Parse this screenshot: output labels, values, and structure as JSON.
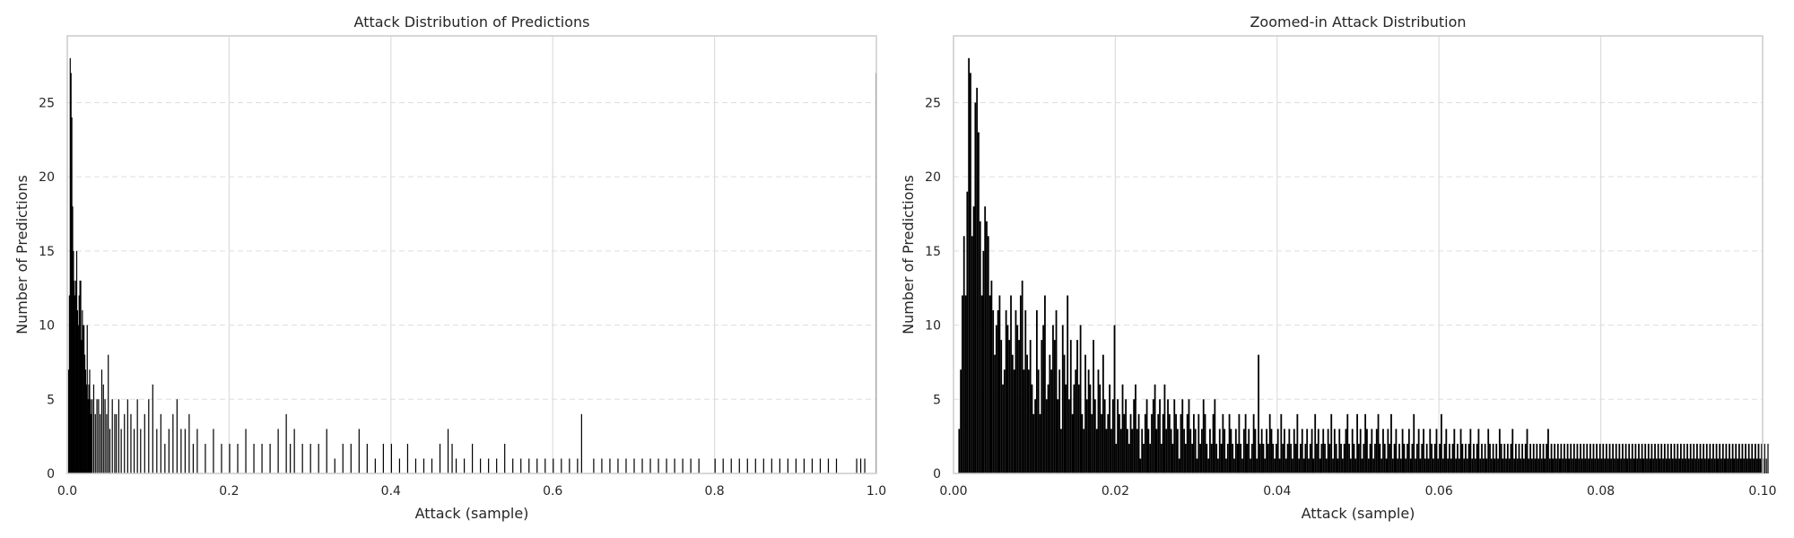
{
  "chart_data": [
    {
      "type": "bar",
      "title": "Attack Distribution of Predictions",
      "xlabel": "Attack (sample)",
      "ylabel": "Number of Predictions",
      "xlim": [
        0.0,
        1.0
      ],
      "ylim": [
        0,
        29.5
      ],
      "xticks": [
        "0.0",
        "0.2",
        "0.4",
        "0.6",
        "0.8",
        "1.0"
      ],
      "yticks": [
        "0",
        "5",
        "10",
        "15",
        "20",
        "25"
      ],
      "grid": {
        "x": "solid",
        "y": "dashed"
      },
      "bin_width": 0.001,
      "x": [
        0.001,
        0.002,
        0.003,
        0.004,
        0.005,
        0.006,
        0.007,
        0.008,
        0.009,
        0.01,
        0.011,
        0.012,
        0.013,
        0.014,
        0.015,
        0.016,
        0.017,
        0.018,
        0.019,
        0.02,
        0.021,
        0.022,
        0.023,
        0.024,
        0.025,
        0.026,
        0.027,
        0.028,
        0.029,
        0.03,
        0.032,
        0.034,
        0.036,
        0.038,
        0.04,
        0.042,
        0.044,
        0.046,
        0.048,
        0.05,
        0.052,
        0.055,
        0.058,
        0.06,
        0.063,
        0.066,
        0.07,
        0.074,
        0.078,
        0.082,
        0.086,
        0.09,
        0.095,
        0.1,
        0.105,
        0.11,
        0.115,
        0.12,
        0.125,
        0.13,
        0.135,
        0.14,
        0.145,
        0.15,
        0.155,
        0.16,
        0.17,
        0.18,
        0.19,
        0.2,
        0.21,
        0.22,
        0.23,
        0.24,
        0.25,
        0.26,
        0.27,
        0.275,
        0.28,
        0.29,
        0.3,
        0.31,
        0.32,
        0.33,
        0.34,
        0.35,
        0.36,
        0.37,
        0.38,
        0.39,
        0.4,
        0.41,
        0.42,
        0.43,
        0.44,
        0.45,
        0.46,
        0.47,
        0.475,
        0.48,
        0.49,
        0.5,
        0.51,
        0.52,
        0.53,
        0.54,
        0.55,
        0.56,
        0.57,
        0.58,
        0.59,
        0.6,
        0.61,
        0.62,
        0.63,
        0.635,
        0.65,
        0.66,
        0.67,
        0.68,
        0.69,
        0.7,
        0.71,
        0.72,
        0.73,
        0.74,
        0.75,
        0.76,
        0.77,
        0.78,
        0.8,
        0.81,
        0.82,
        0.83,
        0.84,
        0.85,
        0.86,
        0.87,
        0.88,
        0.89,
        0.9,
        0.91,
        0.92,
        0.93,
        0.94,
        0.95,
        0.975,
        0.98,
        0.985,
        0.999
      ],
      "values": [
        7,
        12,
        28,
        27,
        24,
        18,
        15,
        13,
        12,
        13,
        15,
        11,
        10,
        12,
        13,
        13,
        9,
        11,
        10,
        10,
        8,
        7,
        6,
        10,
        5,
        6,
        7,
        5,
        4,
        5,
        6,
        4,
        5,
        5,
        4,
        7,
        6,
        5,
        4,
        8,
        3,
        5,
        4,
        4,
        5,
        3,
        4,
        5,
        4,
        3,
        5,
        3,
        4,
        5,
        6,
        3,
        4,
        2,
        3,
        4,
        5,
        3,
        3,
        4,
        2,
        3,
        2,
        3,
        2,
        2,
        2,
        3,
        2,
        2,
        2,
        3,
        4,
        2,
        3,
        2,
        2,
        2,
        3,
        1,
        2,
        2,
        3,
        2,
        1,
        2,
        2,
        1,
        2,
        1,
        1,
        1,
        2,
        3,
        2,
        1,
        1,
        2,
        1,
        1,
        1,
        2,
        1,
        1,
        1,
        1,
        1,
        1,
        1,
        1,
        1,
        4,
        1,
        1,
        1,
        1,
        1,
        1,
        1,
        1,
        1,
        1,
        1,
        1,
        1,
        1,
        1,
        1,
        1,
        1,
        1,
        1,
        1,
        1,
        1,
        1,
        1,
        1,
        1,
        1,
        1,
        1,
        1,
        1,
        1,
        27
      ]
    },
    {
      "type": "bar",
      "title": "Zoomed-in Attack Distribution",
      "xlabel": "Attack (sample)",
      "ylabel": "Number of Predictions",
      "xlim": [
        0.0,
        0.1
      ],
      "ylim": [
        0,
        29.5
      ],
      "xticks": [
        "0.00",
        "0.02",
        "0.04",
        "0.06",
        "0.08",
        "0.10"
      ],
      "yticks": [
        "0",
        "5",
        "10",
        "15",
        "20",
        "25"
      ],
      "grid": {
        "x": "solid",
        "y": "dashed"
      },
      "bin_width": 0.0002,
      "values": [
        0,
        0,
        0,
        3,
        7,
        12,
        16,
        12,
        19,
        28,
        27,
        16,
        18,
        25,
        26,
        23,
        17,
        12,
        15,
        18,
        17,
        16,
        12,
        13,
        11,
        8,
        10,
        11,
        12,
        9,
        6,
        7,
        11,
        10,
        9,
        12,
        8,
        7,
        11,
        10,
        9,
        12,
        13,
        7,
        11,
        8,
        7,
        9,
        6,
        4,
        5,
        11,
        7,
        4,
        9,
        10,
        12,
        5,
        6,
        8,
        7,
        10,
        9,
        11,
        5,
        7,
        3,
        10,
        8,
        6,
        12,
        5,
        9,
        4,
        6,
        7,
        9,
        6,
        10,
        4,
        3,
        8,
        5,
        7,
        6,
        4,
        9,
        5,
        3,
        7,
        6,
        4,
        8,
        5,
        3,
        4,
        6,
        3,
        5,
        10,
        2,
        5,
        4,
        3,
        6,
        4,
        5,
        3,
        2,
        4,
        3,
        5,
        6,
        3,
        4,
        1,
        3,
        2,
        4,
        5,
        3,
        2,
        4,
        5,
        6,
        3,
        4,
        5,
        2,
        4,
        6,
        3,
        5,
        4,
        3,
        2,
        5,
        4,
        3,
        1,
        4,
        5,
        3,
        2,
        4,
        5,
        3,
        2,
        4,
        3,
        1,
        4,
        2,
        3,
        5,
        4,
        2,
        1,
        3,
        2,
        4,
        5,
        2,
        1,
        3,
        2,
        4,
        3,
        1,
        2,
        4,
        3,
        2,
        1,
        3,
        2,
        4,
        2,
        1,
        3,
        4,
        2,
        3,
        1,
        2,
        4,
        3,
        1,
        8,
        2,
        3,
        2,
        1,
        3,
        2,
        4,
        3,
        2,
        1,
        2,
        3,
        1,
        4,
        2,
        3,
        1,
        2,
        3,
        2,
        1,
        3,
        2,
        4,
        1,
        2,
        3,
        1,
        2,
        3,
        1,
        2,
        3,
        1,
        4,
        2,
        3,
        1,
        2,
        3,
        2,
        1,
        3,
        2,
        4,
        1,
        3,
        2,
        1,
        3,
        2,
        1,
        2,
        3,
        4,
        2,
        1,
        3,
        2,
        1,
        4,
        2,
        3,
        1,
        2,
        4,
        3,
        1,
        2,
        3,
        1,
        2,
        3,
        4,
        2,
        1,
        3,
        2,
        1,
        3,
        2,
        4,
        1,
        2,
        3,
        1,
        2,
        1,
        3,
        2,
        1,
        2,
        3,
        1,
        2,
        4,
        1,
        2,
        3,
        1,
        2,
        3,
        1,
        2,
        1,
        3,
        2,
        1,
        2,
        3,
        1,
        2,
        4,
        1,
        2,
        3,
        1,
        2,
        1,
        2,
        3,
        1,
        2,
        1,
        3,
        2,
        1,
        2,
        1,
        2,
        3,
        1,
        2,
        1,
        2,
        3,
        1,
        2,
        1,
        2,
        1,
        3,
        2,
        1,
        2,
        1,
        2,
        1,
        3,
        2,
        1,
        2,
        1,
        2,
        1,
        2,
        3,
        1,
        2,
        1,
        2,
        1,
        2,
        1,
        2,
        3,
        1,
        2,
        1,
        2,
        1,
        2,
        1,
        2,
        1,
        2,
        1,
        2,
        3,
        1,
        2,
        1,
        2,
        1,
        2,
        1,
        2,
        1,
        2,
        1,
        2,
        1,
        2,
        1,
        2,
        1,
        2,
        1,
        2,
        1,
        2,
        1,
        2,
        1,
        2,
        1,
        2,
        1,
        2,
        1,
        2,
        1,
        2,
        1,
        2,
        1,
        2,
        1,
        2,
        1,
        2,
        1,
        2,
        1,
        2,
        1,
        2,
        1,
        2,
        1,
        2,
        1,
        2,
        1,
        2,
        1,
        2,
        1,
        2,
        1,
        2,
        1,
        2,
        1,
        2,
        1,
        2,
        1,
        2,
        1,
        2,
        1,
        2,
        1,
        2,
        1,
        2,
        1,
        2,
        1,
        2,
        1,
        2,
        1,
        2,
        1,
        2,
        1,
        2,
        1,
        2,
        1,
        2,
        1,
        2,
        1,
        2,
        1,
        2,
        1,
        2,
        1,
        2,
        1,
        2,
        1,
        2,
        1,
        2,
        1,
        2,
        1,
        2,
        1,
        2,
        1,
        2,
        1,
        2,
        1,
        2,
        1,
        2,
        1,
        2,
        1,
        2,
        1,
        2,
        1,
        2,
        1,
        2,
        1,
        2
      ]
    }
  ],
  "colors": {
    "bars": "#000000",
    "axes_edge": "#cccccc",
    "grid": "#dddddd",
    "text": "#262626"
  }
}
